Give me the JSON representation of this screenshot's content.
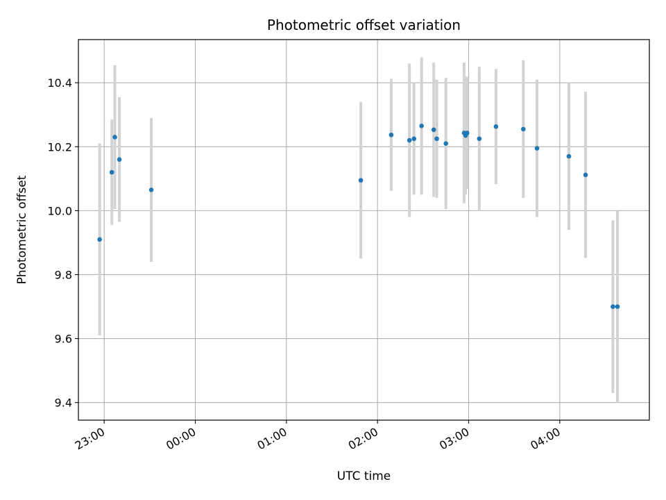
{
  "chart_data": {
    "type": "scatter",
    "title": "Photometric offset variation",
    "xlabel": "UTC time",
    "ylabel": "Photometric offset",
    "x_unit": "UTC time (hh:mm), observation night; hours after 24:00 fall on the following day",
    "xlim": [
      "22:43",
      "04:59"
    ],
    "ylim": [
      9.345,
      10.535
    ],
    "x_ticks": [
      "23:00",
      "00:00",
      "01:00",
      "02:00",
      "03:00",
      "04:00"
    ],
    "y_ticks": [
      9.4,
      9.6,
      9.8,
      10.0,
      10.2,
      10.4
    ],
    "y_tick_labels": [
      "9.4",
      "9.6",
      "9.8",
      "10.0",
      "10.2",
      "10.4"
    ],
    "grid": true,
    "marker_color": "#1f77b4",
    "errorbar_color": "#d3d3d3",
    "series": [
      {
        "points": [
          {
            "x": "22:57",
            "y": 9.91,
            "err": 0.3
          },
          {
            "x": "23:05",
            "y": 10.12,
            "err": 0.165
          },
          {
            "x": "23:07",
            "y": 10.23,
            "err": 0.225
          },
          {
            "x": "23:10",
            "y": 10.16,
            "err": 0.195
          },
          {
            "x": "23:31",
            "y": 10.065,
            "err": 0.225
          },
          {
            "x": "01:49",
            "y": 10.095,
            "err": 0.245
          },
          {
            "x": "02:09",
            "y": 10.237,
            "err": 0.175
          },
          {
            "x": "02:21",
            "y": 10.22,
            "err": 0.24
          },
          {
            "x": "02:24",
            "y": 10.225,
            "err": 0.175
          },
          {
            "x": "02:29",
            "y": 10.265,
            "err": 0.215
          },
          {
            "x": "02:37",
            "y": 10.253,
            "err": 0.21
          },
          {
            "x": "02:39",
            "y": 10.225,
            "err": 0.185
          },
          {
            "x": "02:45",
            "y": 10.21,
            "err": 0.205
          },
          {
            "x": "02:57",
            "y": 10.243,
            "err": 0.22
          },
          {
            "x": "02:58",
            "y": 10.235,
            "err": 0.185
          },
          {
            "x": "02:59",
            "y": 10.243,
            "err": 0.175
          },
          {
            "x": "03:07",
            "y": 10.225,
            "err": 0.225
          },
          {
            "x": "03:18",
            "y": 10.263,
            "err": 0.18
          },
          {
            "x": "03:36",
            "y": 10.255,
            "err": 0.215
          },
          {
            "x": "03:45",
            "y": 10.195,
            "err": 0.215
          },
          {
            "x": "04:06",
            "y": 10.17,
            "err": 0.23
          },
          {
            "x": "04:17",
            "y": 10.112,
            "err": 0.26
          },
          {
            "x": "04:35",
            "y": 9.7,
            "err": 0.27
          },
          {
            "x": "04:38",
            "y": 9.7,
            "err": 0.3
          }
        ]
      }
    ]
  }
}
